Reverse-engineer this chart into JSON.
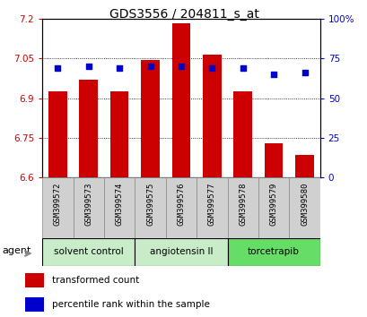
{
  "title": "GDS3556 / 204811_s_at",
  "samples": [
    "GSM399572",
    "GSM399573",
    "GSM399574",
    "GSM399575",
    "GSM399576",
    "GSM399577",
    "GSM399578",
    "GSM399579",
    "GSM399580"
  ],
  "bar_values": [
    6.925,
    6.97,
    6.925,
    7.045,
    7.185,
    7.065,
    6.925,
    6.73,
    6.685
  ],
  "percentile_values": [
    69,
    70,
    69,
    70,
    70,
    69,
    69,
    65,
    66
  ],
  "ylim_left": [
    6.6,
    7.2
  ],
  "ylim_right": [
    0,
    100
  ],
  "yticks_left": [
    6.6,
    6.75,
    6.9,
    7.05,
    7.2
  ],
  "yticks_right": [
    0,
    25,
    50,
    75,
    100
  ],
  "ytick_labels_left": [
    "6.6",
    "6.75",
    "6.9",
    "7.05",
    "7.2"
  ],
  "ytick_labels_right": [
    "0",
    "25",
    "50",
    "75",
    "100%"
  ],
  "bar_color": "#cc0000",
  "dot_color": "#0000cc",
  "bar_width": 0.6,
  "legend_bar": "transformed count",
  "legend_dot": "percentile rank within the sample",
  "title_fontsize": 10,
  "tick_fontsize": 7.5,
  "sample_fontsize": 6.5,
  "group_fontsize": 7.5,
  "legend_fontsize": 7.5,
  "agent_fontsize": 8,
  "group_data": [
    {
      "start": 0,
      "end": 2,
      "label": "solvent control",
      "color": "#c8ecc8"
    },
    {
      "start": 3,
      "end": 5,
      "label": "angiotensin II",
      "color": "#c8ecc8"
    },
    {
      "start": 6,
      "end": 8,
      "label": "torcetrapib",
      "color": "#66dd66"
    }
  ]
}
